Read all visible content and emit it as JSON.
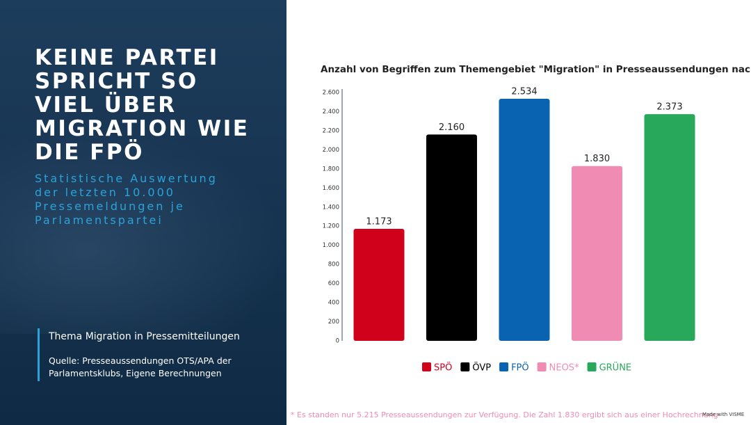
{
  "headline": {
    "lines": [
      "KEINE PARTEI",
      "SPRICHT SO",
      "VIEL ÜBER",
      "MIGRATION WIE",
      "DIE FPÖ"
    ]
  },
  "subheadline": {
    "lines": [
      "Statistische Auswertung",
      "der letzten 10.000",
      "Pressemeldungen je",
      "Parlamentspartei"
    ]
  },
  "info": {
    "topic": "Thema Migration in Pressemitteilungen",
    "source_lines": [
      "Quelle: Presseaussendungen OTS/APA der",
      "Parlamentsklubs, Eigene Berechnungen"
    ]
  },
  "footnote": "* Es standen nur 5.215 Presseaussendungen zur Verfügung. Die Zahl 1.830 ergibt sich aus einer Hochrechnung",
  "credit": "Made with VISME",
  "chart_data": {
    "type": "bar",
    "title": "Anzahl von Begriffen zum Themengebiet \"Migration\" in Presseaussendungen nach Partei",
    "categories": [
      "SPÖ",
      "ÖVP",
      "FPÖ",
      "NEOS*",
      "GRÜNE"
    ],
    "values": [
      1173,
      2160,
      2534,
      1830,
      2373
    ],
    "value_labels": [
      "1.173",
      "2.160",
      "2.534",
      "1.830",
      "2.373"
    ],
    "colors": [
      "#d0021b",
      "#000000",
      "#0a63b0",
      "#f08cb4",
      "#27a85a"
    ],
    "ylim": [
      0,
      2600
    ],
    "yticks": [
      0,
      200,
      400,
      600,
      800,
      {
        "value": 1000,
        "label": "1.000"
      },
      {
        "value": 1200,
        "label": "1.200"
      },
      {
        "value": 1400,
        "label": "1.400"
      },
      {
        "value": 1600,
        "label": "1.600"
      },
      {
        "value": 1800,
        "label": "1.800"
      },
      {
        "value": 2000,
        "label": "2.000"
      },
      {
        "value": 2200,
        "label": "2.200"
      },
      {
        "value": 2400,
        "label": "2.400"
      },
      {
        "value": 2600,
        "label": "2.600"
      }
    ],
    "grid": false,
    "legend": "bottom"
  }
}
